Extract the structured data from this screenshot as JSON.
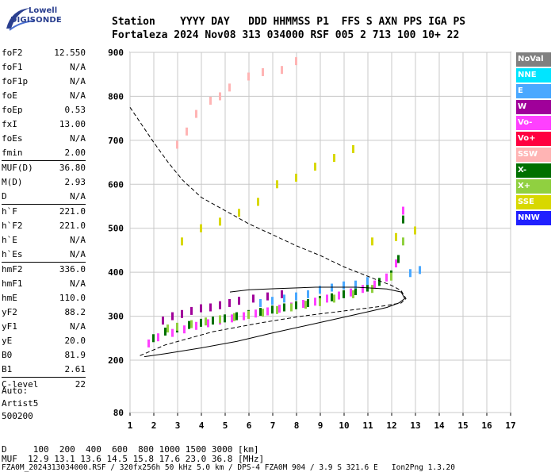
{
  "logo": {
    "line1": "Lowell",
    "line2": "DIGISONDE"
  },
  "header": {
    "row1": "Station    YYYY DAY   DDD HHMMSS P1  FFS S AXN PPS IGA PS",
    "row2": "Fortaleza 2024 Nov08 313 034000 RSF 005 2 713 100 10+ 22"
  },
  "params": [
    {
      "label": "foF2",
      "value": "12.550"
    },
    {
      "label": "foF1",
      "value": "N/A"
    },
    {
      "label": "foF1p",
      "value": "N/A"
    },
    {
      "label": "foE",
      "value": "N/A"
    },
    {
      "label": "foEp",
      "value": "0.53"
    },
    {
      "label": "fxI",
      "value": "13.00"
    },
    {
      "label": "foEs",
      "value": "N/A"
    },
    {
      "label": "fmin",
      "value": "2.00"
    },
    {
      "label": "MUF(D)",
      "value": "36.80",
      "sep": true
    },
    {
      "label": "M(D)",
      "value": "2.93"
    },
    {
      "label": "D",
      "value": "N/A"
    },
    {
      "label": "h`F",
      "value": "221.0",
      "sep": true
    },
    {
      "label": "h`F2",
      "value": "221.0"
    },
    {
      "label": "h`E",
      "value": "N/A"
    },
    {
      "label": "h`Es",
      "value": "N/A"
    },
    {
      "label": "hmF2",
      "value": "336.0",
      "sep": true
    },
    {
      "label": "hmF1",
      "value": "N/A"
    },
    {
      "label": "hmE",
      "value": "110.0"
    },
    {
      "label": "yF2",
      "value": "88.2"
    },
    {
      "label": "yF1",
      "value": "N/A"
    },
    {
      "label": "yE",
      "value": "20.0"
    },
    {
      "label": "B0",
      "value": "81.9"
    },
    {
      "label": "B1",
      "value": "2.61"
    },
    {
      "label": "C-level",
      "value": "22",
      "sep": true
    }
  ],
  "auto": {
    "line1": "Auto:",
    "line2": "Artist5",
    "line3": "500200"
  },
  "legend": [
    {
      "label": "NoVal",
      "color": "#808080"
    },
    {
      "label": "NNE",
      "color": "#00e5ff"
    },
    {
      "label": "E",
      "color": "#4aa8ff"
    },
    {
      "label": "W",
      "color": "#a0009a"
    },
    {
      "label": "Vo-",
      "color": "#ff40ff"
    },
    {
      "label": "Vo+",
      "color": "#ff0040"
    },
    {
      "label": "SSW",
      "color": "#ffb4b4"
    },
    {
      "label": "X-",
      "color": "#007000"
    },
    {
      "label": "X+",
      "color": "#90d040"
    },
    {
      "label": "SSE",
      "color": "#d8d800"
    },
    {
      "label": "NNW",
      "color": "#2020ff"
    }
  ],
  "muf_table": {
    "d_row": "D     100  200  400  600  800 1000 1500 3000 [km]",
    "muf_row": "MUF  12.9 13.1 13.6 14.5 15.8 17.6 23.0 36.8 [MHz]"
  },
  "footer": "FZA0M_2024313034000.RSF / 320fx256h 50 kHz 5.0 km / DPS-4 FZA0M 904 / 3.9 S 321.6 E   Ion2Png 1.3.20",
  "chart_data": {
    "type": "scatter",
    "xlim": [
      1,
      17
    ],
    "ylim": [
      80,
      900
    ],
    "x_ticks": [
      1,
      2,
      3,
      4,
      5,
      6,
      7,
      8,
      9,
      10,
      11,
      12,
      13,
      14,
      15,
      16,
      17
    ],
    "y_ticks": [
      80,
      200,
      300,
      400,
      500,
      600,
      700,
      800,
      900
    ],
    "grid": true,
    "series": [
      {
        "name": "X-",
        "color": "#007000",
        "x": [
          2.0,
          2.5,
          3.0,
          3.5,
          4.0,
          4.5,
          5.0,
          5.5,
          6.0,
          6.5,
          7.0,
          7.5,
          8.0,
          8.5,
          9.0,
          9.5,
          10.0,
          10.5,
          11.0,
          11.5,
          12.0,
          12.3,
          12.5
        ],
        "y": [
          250,
          265,
          272,
          280,
          285,
          290,
          295,
          300,
          305,
          310,
          315,
          320,
          325,
          330,
          337,
          343,
          350,
          357,
          365,
          378,
          395,
          430,
          520
        ]
      },
      {
        "name": "Vo-",
        "color": "#ff40ff",
        "x": [
          1.8,
          2.2,
          2.8,
          3.3,
          3.8,
          4.3,
          4.8,
          5.3,
          5.8,
          6.3,
          6.8,
          7.3,
          7.8,
          8.3,
          8.8,
          9.3,
          9.8,
          10.3,
          10.8,
          11.3,
          11.8,
          12.2,
          12.5
        ],
        "y": [
          238,
          252,
          262,
          270,
          278,
          284,
          290,
          295,
          300,
          306,
          311,
          317,
          322,
          328,
          333,
          340,
          347,
          354,
          362,
          372,
          388,
          420,
          540
        ]
      },
      {
        "name": "W",
        "color": "#a0009a",
        "x": [
          2.4,
          2.8,
          3.2,
          3.6,
          4.0,
          4.4,
          4.8,
          5.2,
          5.6,
          6.2,
          6.8,
          7.4
        ],
        "y": [
          290,
          300,
          305,
          312,
          318,
          320,
          325,
          330,
          335,
          340,
          345,
          350
        ]
      },
      {
        "name": "E",
        "color": "#4aa8ff",
        "x": [
          6.5,
          7.0,
          7.5,
          8.0,
          8.5,
          9.0,
          9.5,
          10.0,
          10.5,
          11.0,
          12.8,
          13.2
        ],
        "y": [
          330,
          335,
          340,
          345,
          350,
          360,
          365,
          370,
          372,
          380,
          398,
          405
        ]
      },
      {
        "name": "X+",
        "color": "#90d040",
        "x": [
          2.6,
          3.0,
          3.6,
          4.2,
          4.8,
          5.4,
          6.0,
          6.6,
          7.2,
          7.8,
          8.4,
          9.0,
          9.6,
          10.4,
          11.2,
          12.0,
          12.5
        ],
        "y": [
          272,
          276,
          282,
          288,
          293,
          298,
          303,
          308,
          314,
          320,
          326,
          332,
          340,
          350,
          362,
          390,
          470
        ]
      },
      {
        "name": "SSE",
        "color": "#d8d800",
        "x": [
          3.2,
          4.0,
          4.8,
          5.6,
          6.4,
          7.2,
          8.0,
          8.8,
          9.6,
          10.4,
          11.2,
          12.2,
          13.0
        ],
        "y": [
          470,
          500,
          515,
          535,
          560,
          600,
          615,
          640,
          660,
          680,
          470,
          480,
          495
        ]
      },
      {
        "name": "SSW",
        "color": "#ffb4b4",
        "x": [
          3.0,
          3.4,
          3.8,
          4.4,
          4.8,
          5.2,
          6.0,
          6.6,
          7.4,
          8.0
        ],
        "y": [
          690,
          720,
          760,
          790,
          800,
          820,
          845,
          855,
          860,
          880
        ]
      }
    ],
    "profile_solid": {
      "x": [
        1.6,
        2.5,
        4,
        5.5,
        7,
        8.5,
        10,
        11,
        11.8,
        12.3,
        12.55,
        12.4,
        11.8,
        10.5,
        8.8,
        7.2,
        6.0,
        5.2
      ],
      "y": [
        208,
        215,
        228,
        243,
        262,
        280,
        298,
        310,
        320,
        330,
        340,
        355,
        362,
        366,
        366,
        363,
        360,
        355
      ]
    },
    "profile_dashed": {
      "x": [
        1.0,
        1.5,
        2.0,
        2.6,
        3.2,
        4,
        5,
        6,
        7,
        8,
        9,
        10,
        10.8,
        11.5,
        12.0,
        12.4,
        12.6,
        12.4,
        11.5,
        10.0,
        8.2,
        6.5,
        4.5,
        2.5,
        1.4
      ],
      "y": [
        775,
        735,
        695,
        650,
        610,
        570,
        540,
        510,
        485,
        460,
        438,
        412,
        395,
        380,
        370,
        358,
        340,
        330,
        322,
        312,
        300,
        285,
        265,
        235,
        210
      ]
    }
  }
}
